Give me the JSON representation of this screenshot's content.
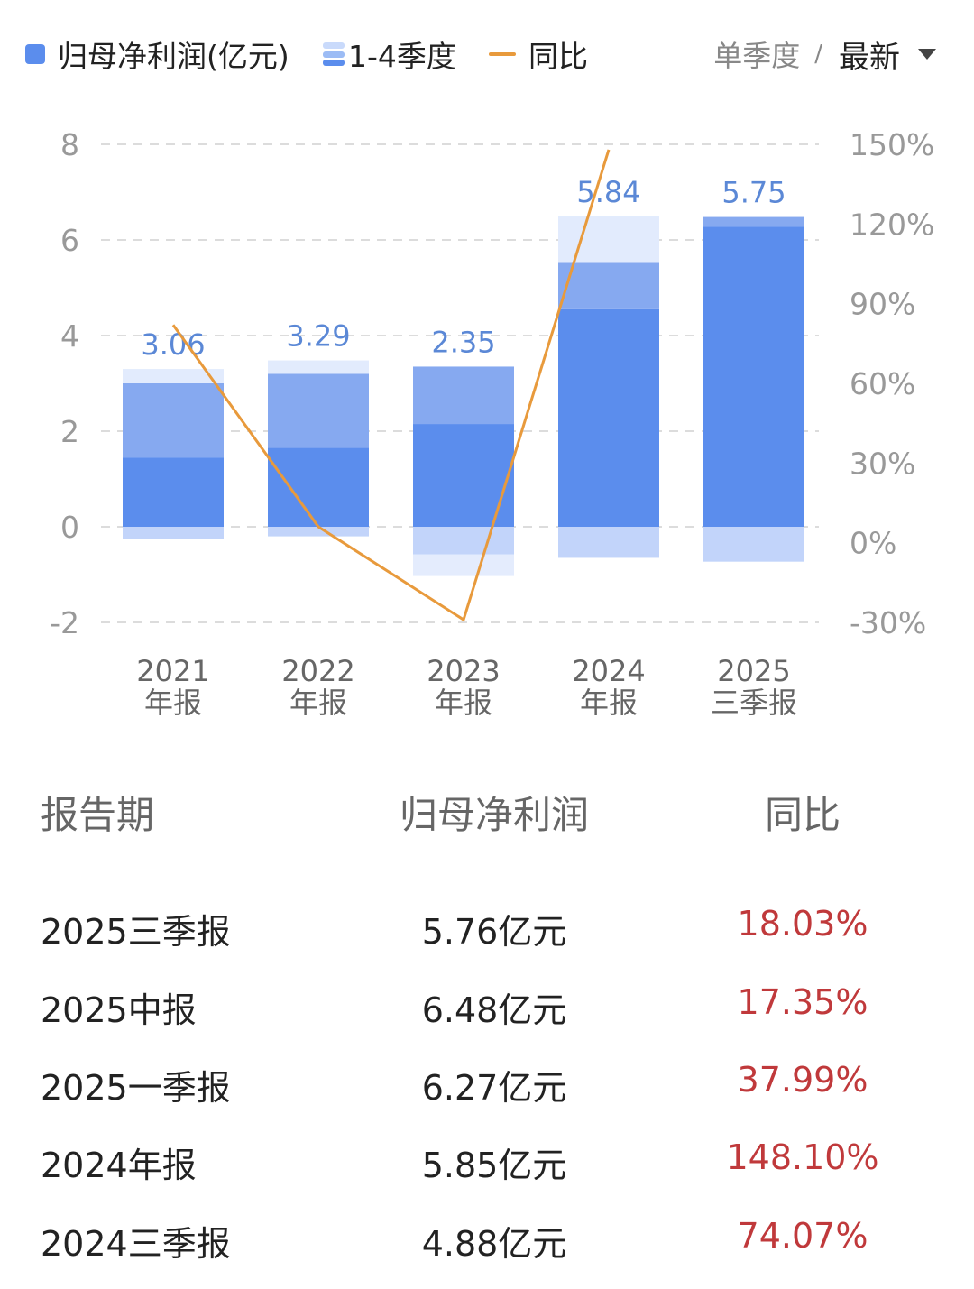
{
  "legend": {
    "items": [
      {
        "label": "归母净利润(亿元)",
        "icon": "solid-square-icon",
        "color": "#5b8ded"
      },
      {
        "label": "1-4季度",
        "icon": "stacked-layers-icon",
        "colors": [
          "#c9dafb",
          "#9cbcf5",
          "#5b8ded"
        ]
      },
      {
        "label": "同比",
        "icon": "line-icon",
        "color": "#e89a3c"
      }
    ],
    "mode_label": "单季度",
    "mode_sep": "/",
    "mode_selected": "最新"
  },
  "chart_data": {
    "type": "bar",
    "categories": [
      {
        "year": "2021",
        "label": "年报"
      },
      {
        "year": "2022",
        "label": "年报"
      },
      {
        "year": "2023",
        "label": "年报"
      },
      {
        "year": "2024",
        "label": "年报"
      },
      {
        "year": "2025",
        "label": "三季报"
      }
    ],
    "bar_labels": [
      "3.06",
      "3.29",
      "2.35",
      "5.84",
      "5.75"
    ],
    "stacks": [
      {
        "pos": [
          1.45,
          1.55,
          0.3
        ],
        "neg": [
          0.25
        ]
      },
      {
        "pos": [
          1.65,
          1.55,
          0.28
        ],
        "neg": [
          0.2
        ]
      },
      {
        "pos": [
          2.15,
          1.2
        ],
        "neg": [
          0.58,
          0.45
        ]
      },
      {
        "pos": [
          4.55,
          0.97,
          0.97
        ],
        "neg": [
          0.65
        ]
      },
      {
        "pos": [
          6.28,
          0.2
        ],
        "neg": [
          0.73
        ]
      }
    ],
    "layer_colors": [
      "#5b8ded",
      "#86a9f0",
      "#e2ebfd"
    ],
    "neg_colors": [
      "#c2d4fa",
      "#e4ecfd"
    ],
    "yoy": [
      82,
      6,
      -29,
      148,
      null
    ],
    "yoy_color": "#e89a3c",
    "y_left": {
      "min": -2,
      "max": 8,
      "ticks": [
        "-2",
        "0",
        "2",
        "4",
        "6",
        "8"
      ]
    },
    "y_right": {
      "min": -30,
      "max": 150,
      "ticks": [
        "-30%",
        "0%",
        "30%",
        "60%",
        "90%",
        "120%",
        "150%"
      ]
    },
    "grid": true
  },
  "table": {
    "headers": [
      "报告期",
      "归母净利润",
      "同比"
    ],
    "rows": [
      {
        "period": "2025三季报",
        "profit": "5.76亿元",
        "yoy": "18.03%"
      },
      {
        "period": "2025中报",
        "profit": "6.48亿元",
        "yoy": "17.35%"
      },
      {
        "period": "2025一季报",
        "profit": "6.27亿元",
        "yoy": "37.99%"
      },
      {
        "period": "2024年报",
        "profit": "5.85亿元",
        "yoy": "148.10%"
      },
      {
        "period": "2024三季报",
        "profit": "4.88亿元",
        "yoy": "74.07%"
      }
    ]
  }
}
